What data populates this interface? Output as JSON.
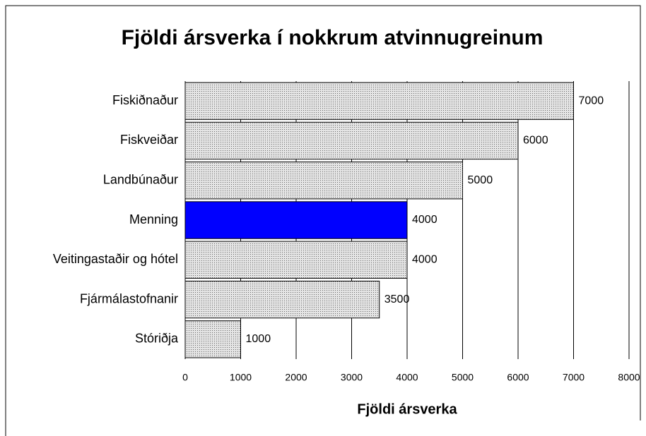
{
  "chart_data": {
    "type": "barh",
    "title": "Fjöldi ársverka í nokkrum atvinnugreinum",
    "xlabel": "Fjöldi ársverka",
    "categories": [
      "Fiskiðnaður",
      "Fiskveiðar",
      "Landbúnaður",
      "Menning",
      "Veitingastaðir og hótel",
      "Fjármálastofnanir",
      "Stóriðja"
    ],
    "values": [
      7000,
      6000,
      5000,
      4000,
      4000,
      3500,
      1000
    ],
    "colors": [
      "#e4e4e4",
      "#e4e4e4",
      "#e4e4e4",
      "#0000ff",
      "#e4e4e4",
      "#e4e4e4",
      "#e4e4e4"
    ],
    "xlim": [
      0,
      8000
    ],
    "xticks": [
      0,
      1000,
      2000,
      3000,
      4000,
      5000,
      6000,
      7000,
      8000
    ],
    "grid": true
  }
}
